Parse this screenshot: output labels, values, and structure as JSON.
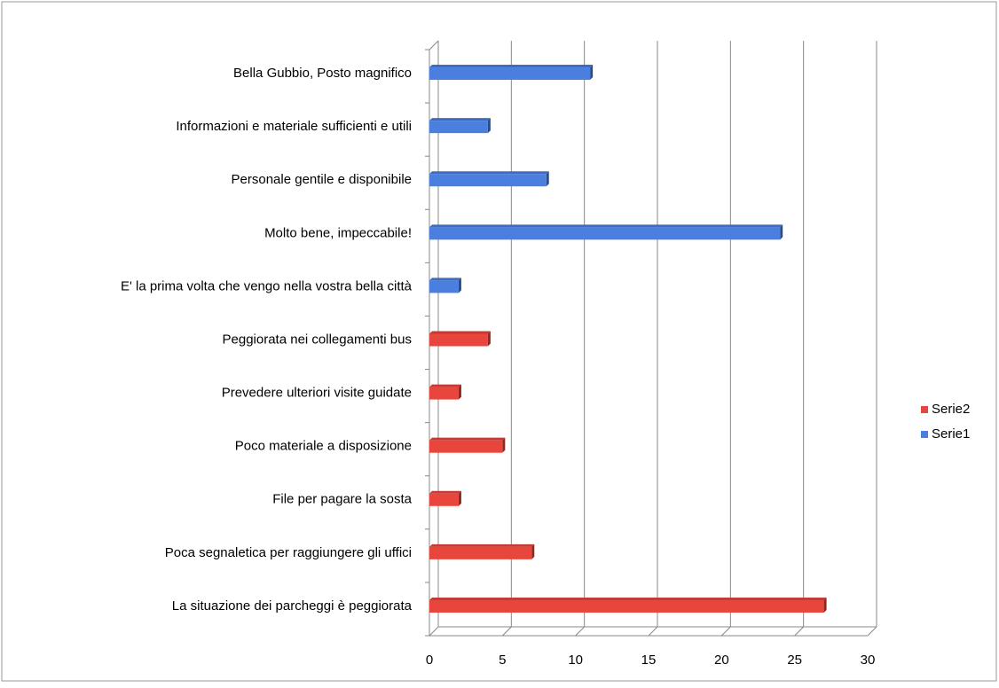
{
  "chart_data": {
    "type": "bar",
    "orientation": "horizontal",
    "categories": [
      "Bella Gubbio, Posto magnifico",
      "Informazioni e materiale  sufficienti e utili",
      "Personale gentile e disponibile",
      "Molto bene, impeccabile! ",
      "E' la prima volta che vengo nella vostra bella città",
      "Peggiorata nei collegamenti bus ",
      "Prevedere ulteriori  visite guidate",
      "Poco materiale a disposizione",
      "File per pagare la sosta",
      "Poca segnaletica per raggiungere gli uffici",
      "La situazione dei parcheggi è peggiorata"
    ],
    "series": [
      {
        "name": "Serie2",
        "color": "#e8453c",
        "values": [
          null,
          null,
          null,
          null,
          null,
          4,
          2,
          5,
          2,
          7,
          27
        ]
      },
      {
        "name": "Serie1",
        "color": "#4a7fe0",
        "values": [
          11,
          4,
          8,
          24,
          2,
          null,
          null,
          null,
          null,
          null,
          null
        ]
      }
    ],
    "xlim": [
      0,
      30
    ],
    "xticks": [
      0,
      5,
      10,
      15,
      20,
      25,
      30
    ],
    "grid": true,
    "legend": "right"
  }
}
